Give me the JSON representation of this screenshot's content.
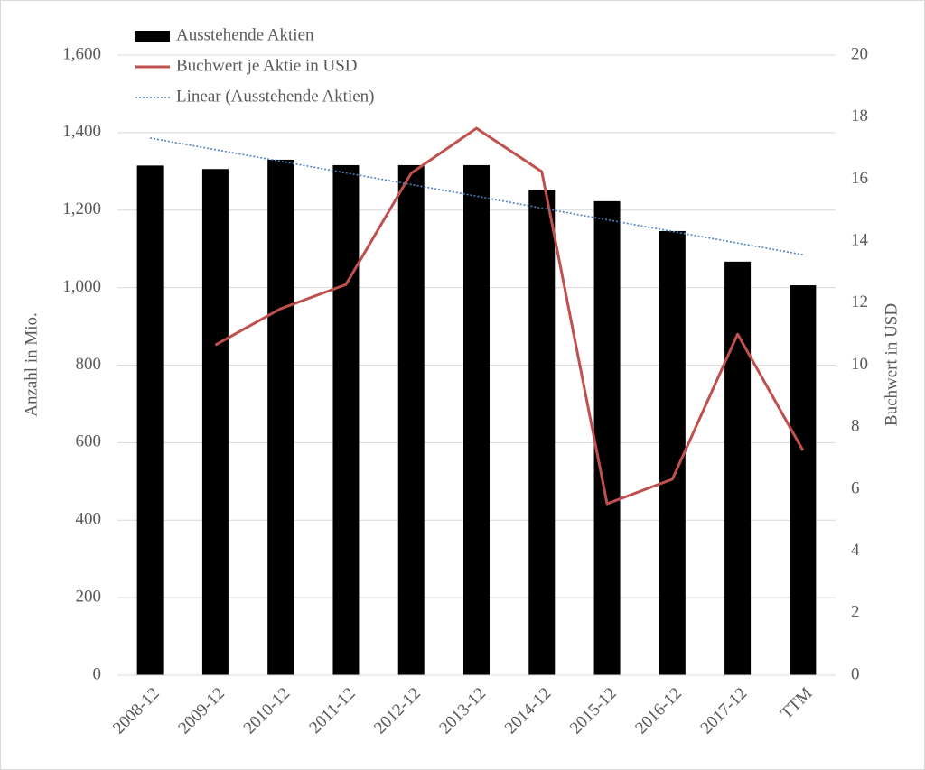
{
  "chart_data": {
    "type": "bar",
    "categories": [
      "2008-12",
      "2009-12",
      "2010-12",
      "2011-12",
      "2012-12",
      "2013-12",
      "2014-12",
      "2015-12",
      "2016-12",
      "2017-12",
      "TTM"
    ],
    "series": [
      {
        "name": "Ausstehende Aktien",
        "type": "bar",
        "color": "#000000",
        "values": [
          1315,
          1306,
          1330,
          1316,
          1316,
          1316,
          1253,
          1223,
          1146,
          1067,
          1006
        ]
      },
      {
        "name": "Buchwert je Aktie in USD",
        "type": "line",
        "axis": "y2",
        "color": "#c0504d",
        "values": [
          null,
          10.65,
          11.82,
          12.6,
          16.19,
          17.64,
          16.24,
          5.53,
          6.32,
          11.0,
          7.25
        ]
      },
      {
        "name": "Linear (Ausstehende Aktien)",
        "type": "line",
        "style": "dotted",
        "color": "#4f81bd",
        "values": [
          1386,
          1356,
          1326,
          1296,
          1266,
          1236,
          1205,
          1175,
          1145,
          1115,
          1085
        ]
      }
    ],
    "ylabel": "Anzahl in Mio.",
    "y2label": "Buchwert in USD",
    "ylim": [
      0,
      1600
    ],
    "yticks": [
      0,
      200,
      400,
      600,
      800,
      {
        "value": 1000,
        "label": "1,000"
      },
      {
        "value": 1200,
        "label": "1,200"
      },
      {
        "value": 1400,
        "label": "1,400"
      },
      {
        "value": 1600,
        "label": "1,600"
      }
    ],
    "y2lim": [
      0,
      20
    ],
    "y2ticks": [
      0,
      2,
      4,
      6,
      8,
      10,
      12,
      14,
      16,
      18,
      20
    ],
    "grid": true,
    "legend": "top-left"
  }
}
